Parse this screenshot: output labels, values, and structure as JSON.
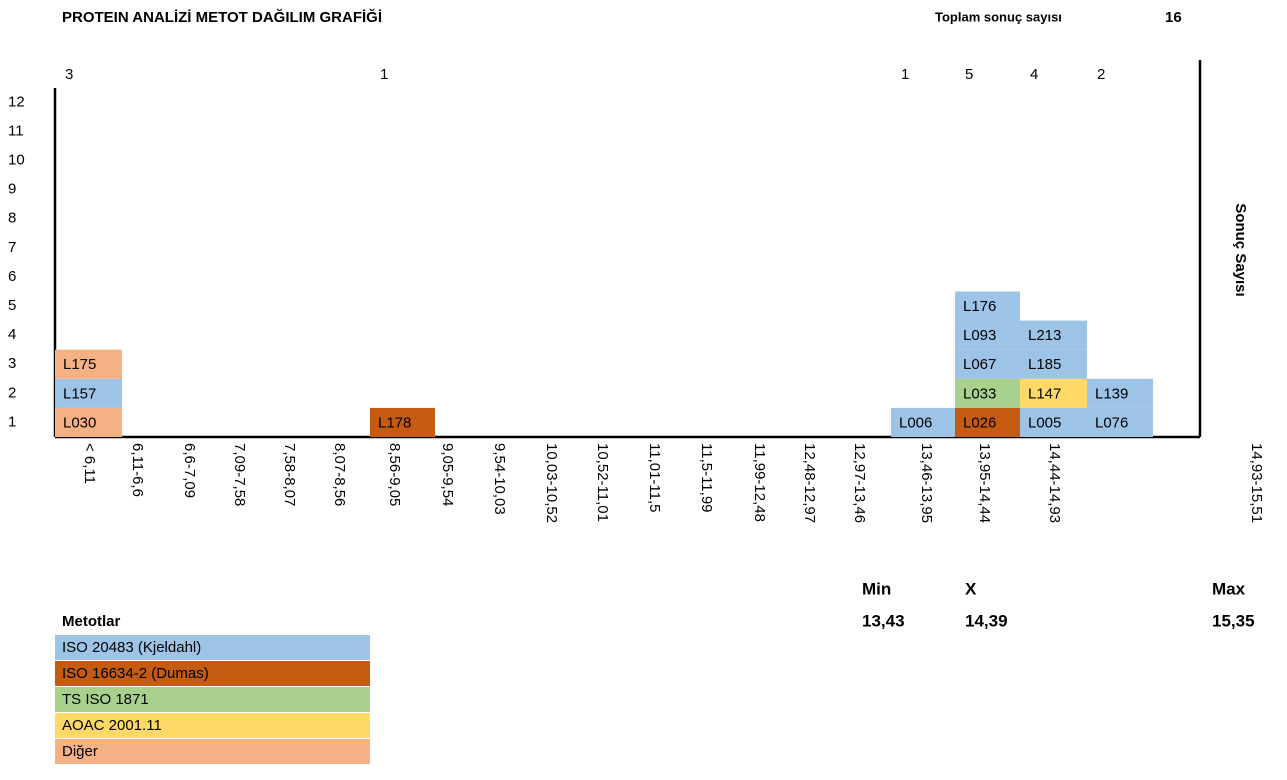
{
  "chart_data": {
    "type": "stacked-cells",
    "title": "PROTEIN ANALİZİ METOT DAĞILIM GRAFİĞİ",
    "total_label": "Toplam sonuç sayısı",
    "total": 16,
    "y_label": "Sonuç Sayısı",
    "yticks": [
      1,
      2,
      3,
      4,
      5,
      6,
      7,
      8,
      9,
      10,
      11,
      12
    ],
    "categories": [
      "< 6,11",
      "6,11-6,6",
      "6,6-7,09",
      "7,09-7,58",
      "7,58-8,07",
      "8,07-8,56",
      "8,56-9,05",
      "9,05-9,54",
      "9,54-10,03",
      "10,03-10,52",
      "10,52-11,01",
      "11,01-11,5",
      "11,5-11,99",
      "11,99-12,48",
      "12,48-12,97",
      "12,97-13,46",
      "13,46-13,95",
      "13,95-14,44",
      "14,44-14,93",
      "14,93-15,51"
    ],
    "columns": [
      {
        "count": 3,
        "cells": [
          {
            "label": "L030",
            "color": "#f4b183"
          },
          {
            "label": "L157",
            "color": "#9dc3e6"
          },
          {
            "label": "L175",
            "color": "#f4b183"
          }
        ]
      },
      {
        "count": 1,
        "cells": [
          {
            "label": "L178",
            "color": "#c55a11"
          }
        ]
      },
      {
        "count": 1,
        "cells": [
          {
            "label": "L006",
            "color": "#9dc3e6"
          }
        ]
      },
      {
        "count": 5,
        "cells": [
          {
            "label": "L026",
            "color": "#c55a11"
          },
          {
            "label": "L033",
            "color": "#a9d18e"
          },
          {
            "label": "L067",
            "color": "#9dc3e6"
          },
          {
            "label": "L093",
            "color": "#9dc3e6"
          },
          {
            "label": "L176",
            "color": "#9dc3e6"
          }
        ]
      },
      {
        "count": 4,
        "cells": [
          {
            "label": "L005",
            "color": "#9dc3e6"
          },
          {
            "label": "L147",
            "color": "#ffd966"
          },
          {
            "label": "L185",
            "color": "#9dc3e6"
          },
          {
            "label": "L213",
            "color": "#9dc3e6"
          }
        ]
      },
      {
        "count": 2,
        "cells": [
          {
            "label": "L076",
            "color": "#9dc3e6"
          },
          {
            "label": "L139",
            "color": "#9dc3e6"
          }
        ]
      }
    ],
    "stats": [
      {
        "label": "Min",
        "value": "13,43"
      },
      {
        "label": "X",
        "value": "14,39"
      },
      {
        "label": "Max",
        "value": "15,35"
      }
    ],
    "legend_title": "Metotlar",
    "legend": [
      {
        "name": "ISO 20483 (Kjeldahl)",
        "color": "#9dc3e6"
      },
      {
        "name": "ISO 16634-2 (Dumas)",
        "color": "#c55a11"
      },
      {
        "name": "TS ISO 1871",
        "color": "#a9d18e"
      },
      {
        "name": "AOAC 2001.11",
        "color": "#ffd966"
      },
      {
        "name": "Diğer",
        "color": "#f4b183"
      }
    ]
  }
}
